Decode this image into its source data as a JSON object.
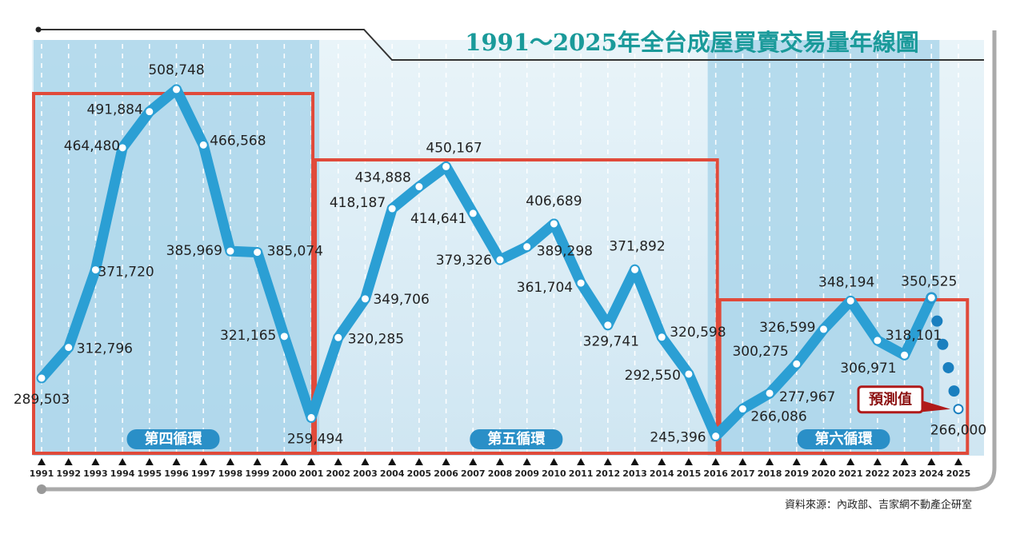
{
  "chart_data": {
    "type": "line",
    "title": "1991～2025年全台成屋買賣交易量年線圖",
    "categories": [
      1991,
      1992,
      1993,
      1994,
      1995,
      1996,
      1997,
      1998,
      1999,
      2000,
      2001,
      2002,
      2003,
      2004,
      2005,
      2006,
      2007,
      2008,
      2009,
      2010,
      2011,
      2012,
      2013,
      2014,
      2015,
      2016,
      2017,
      2018,
      2019,
      2020,
      2021,
      2022,
      2023,
      2024,
      2025
    ],
    "values": [
      289503,
      312796,
      371720,
      464480,
      491884,
      508748,
      466568,
      385969,
      385074,
      321165,
      259494,
      320285,
      349706,
      418187,
      434888,
      450167,
      414641,
      379326,
      389298,
      406689,
      361704,
      329741,
      371892,
      320598,
      292550,
      245396,
      266086,
      277967,
      300275,
      326599,
      348194,
      318101,
      306971,
      350525,
      266000
    ],
    "value_labels": [
      "289,503",
      "312,796",
      "371,720",
      "464,480",
      "491,884",
      "508,748",
      "466,568",
      "385,969",
      "385,074",
      "321,165",
      "259,494",
      "320,285",
      "349,706",
      "418,187",
      "434,888",
      "450,167",
      "414,641",
      "379,326",
      "389,298",
      "406,689",
      "361,704",
      "329,741",
      "371,892",
      "320,598",
      "292,550",
      "245,396",
      "266,086",
      "277,967",
      "300,275",
      "326,599",
      "348,194",
      "318,101",
      "306,971",
      "350,525",
      "266,000"
    ],
    "color": "#2b9fd4",
    "ylim": [
      230600,
      522050
    ],
    "cycles": [
      {
        "label": "第四循環",
        "from": 1991,
        "to": 2001
      },
      {
        "label": "第五循環",
        "from": 2001,
        "to": 2016
      },
      {
        "label": "第六循環",
        "from": 2016,
        "to": 2024
      }
    ],
    "forecast_label": "預測值",
    "source": "資料來源：內政部、吉家網不動產企研室"
  }
}
